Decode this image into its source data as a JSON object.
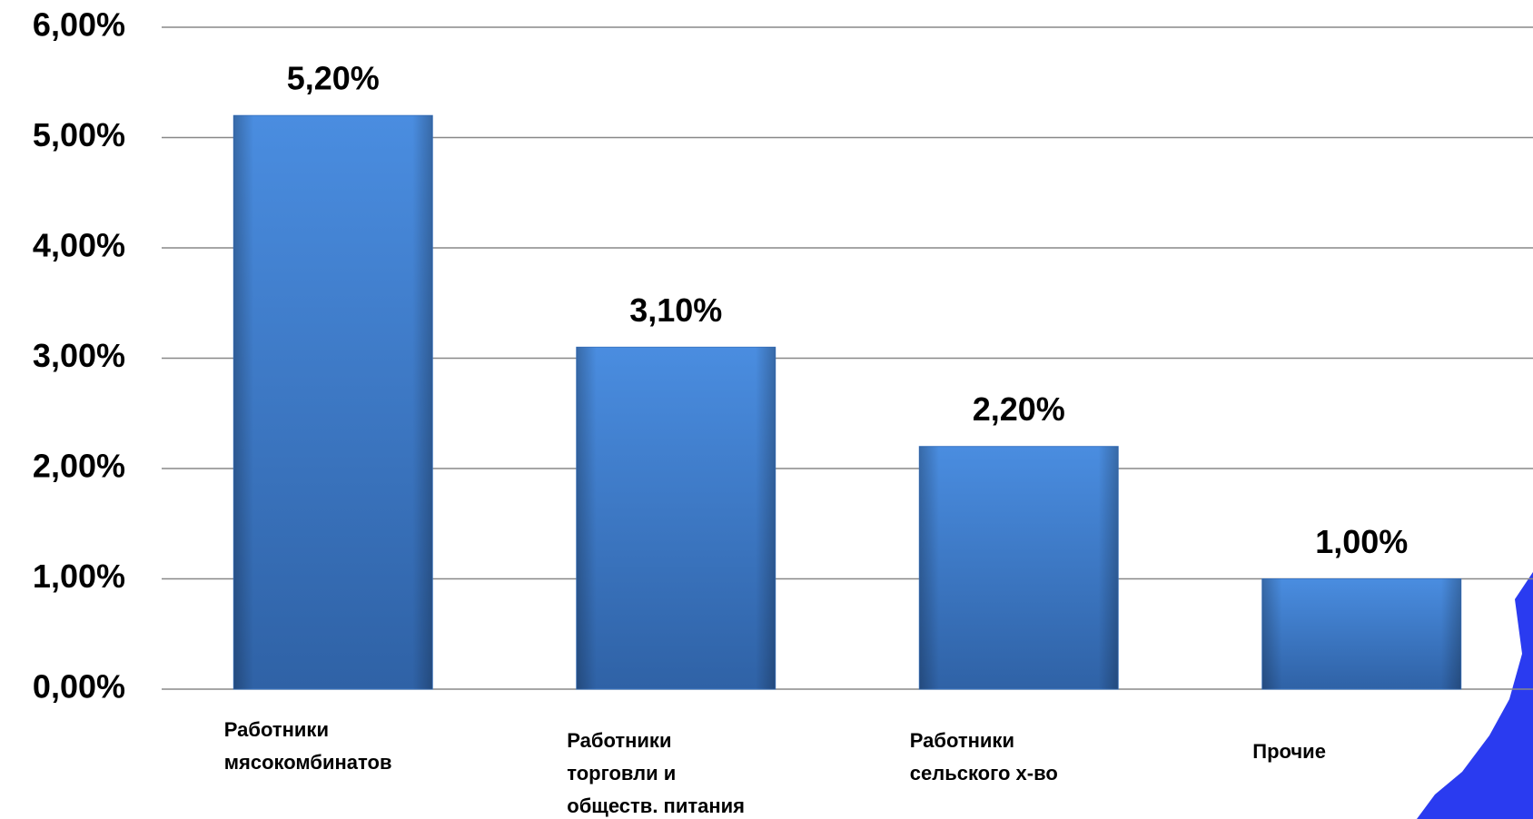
{
  "chart_data": {
    "type": "bar",
    "categories": [
      "Работники\nмясокомбинатов",
      "Работники\nторговли и\nобществ. питания",
      "Работники\n сельского х-во",
      "Прочие"
    ],
    "values": [
      5.2,
      3.1,
      2.2,
      1.0
    ],
    "value_labels": [
      "5,20%",
      "3,10%",
      "2,20%",
      "1,00%"
    ],
    "color": "#3d78c6",
    "ylim": [
      0,
      6
    ],
    "yticks": [
      {
        "value": 0,
        "label": "0,00%"
      },
      {
        "value": 1,
        "label": "1,00%"
      },
      {
        "value": 2,
        "label": "2,00%"
      },
      {
        "value": 3,
        "label": "3,00%"
      },
      {
        "value": 4,
        "label": "4,00%"
      },
      {
        "value": 5,
        "label": "5,00%"
      },
      {
        "value": 6,
        "label": "6,00%"
      }
    ],
    "grid": true
  }
}
